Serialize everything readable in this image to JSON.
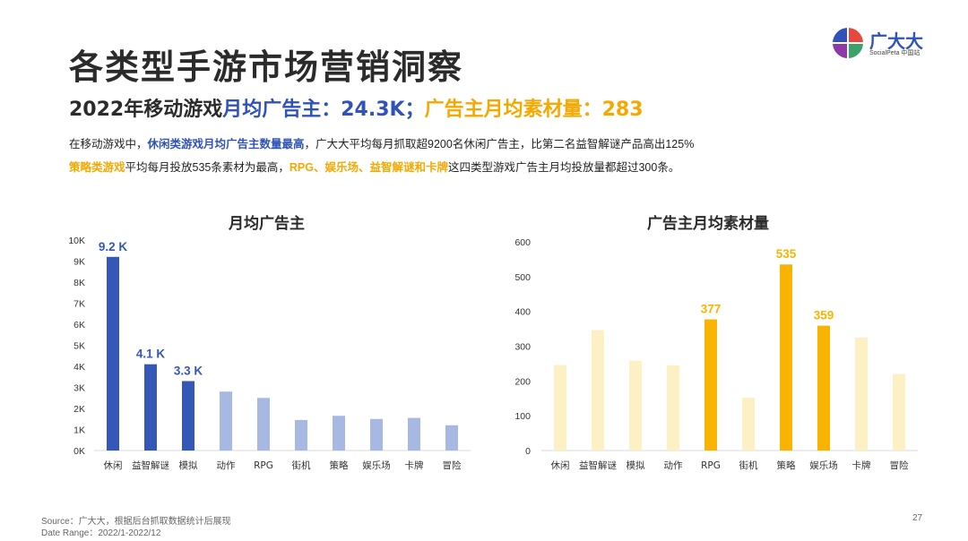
{
  "page": {
    "title": "各类型手游市场营销洞察",
    "page_number": "27"
  },
  "logo": {
    "name": "广大大",
    "sub": "SocialPeta 中国站",
    "colors": [
      "#2f53b8",
      "#e8473f",
      "#8d3aa8",
      "#3aa36b"
    ]
  },
  "headline": {
    "prefix": "2022年移动游戏",
    "blue_part": "月均广告主：24.3K；",
    "orange_part": "广告主月均素材量：283"
  },
  "description": {
    "line1_pre": "在移动游戏中，",
    "line1_bold": "休闲类游戏月均广告主数量最高",
    "line1_post": "，广大大平均每月抓取超9200名休闲广告主，比第二名益智解谜产品高出125%",
    "line2_bold1": "策略类游戏",
    "line2_mid": "平均每月投放535条素材为最高，",
    "line2_bold2": "RPG、娱乐场、益智解谜和卡牌",
    "line2_post": "这四类型游戏广告主月均投放量都超过300条。"
  },
  "footer": {
    "source": "Source：广大大，根据后台抓取数据统计后展现",
    "date_range": "Date Range：2022/1-2022/12"
  },
  "colors": {
    "blue_dark": "#3558b8",
    "blue_light": "#a7b8e2",
    "orange_dark": "#f8b400",
    "orange_light": "#fdf0c4",
    "axis_text": "#333333"
  },
  "chart_data": [
    {
      "type": "bar",
      "title": "月均广告主",
      "categories": [
        "休闲",
        "益智解谜",
        "模拟",
        "动作",
        "RPG",
        "街机",
        "策略",
        "娱乐场",
        "卡牌",
        "冒险"
      ],
      "values": [
        9200,
        4100,
        3300,
        2800,
        2500,
        1450,
        1650,
        1500,
        1550,
        1200
      ],
      "highlight": [
        true,
        true,
        true,
        false,
        false,
        false,
        false,
        false,
        false,
        false
      ],
      "data_labels": [
        "9.2 K",
        "4.1 K",
        "3.3 K",
        "",
        "",
        "",
        "",
        "",
        "",
        ""
      ],
      "ylim": [
        0,
        10000
      ],
      "yticks": [
        0,
        1000,
        2000,
        3000,
        4000,
        5000,
        6000,
        7000,
        8000,
        9000,
        10000
      ],
      "ytick_labels": [
        "0K",
        "1K",
        "2K",
        "3K",
        "4K",
        "5K",
        "6K",
        "7K",
        "8K",
        "9K",
        "10K"
      ],
      "grid": false,
      "xlabel": "",
      "ylabel": ""
    },
    {
      "type": "bar",
      "title": "广告主月均素材量",
      "categories": [
        "休闲",
        "益智解谜",
        "模拟",
        "动作",
        "RPG",
        "街机",
        "策略",
        "娱乐场",
        "卡牌",
        "冒险"
      ],
      "values": [
        246,
        346,
        258,
        245,
        377,
        152,
        535,
        359,
        325,
        220
      ],
      "highlight": [
        false,
        false,
        false,
        false,
        true,
        false,
        true,
        true,
        false,
        false
      ],
      "data_labels": [
        "",
        "",
        "",
        "",
        "377",
        "",
        "535",
        "359",
        "",
        ""
      ],
      "ylim": [
        0,
        600
      ],
      "yticks": [
        0,
        100,
        200,
        300,
        400,
        500,
        600
      ],
      "ytick_labels": [
        "0",
        "100",
        "200",
        "300",
        "400",
        "500",
        "600"
      ],
      "grid": false,
      "xlabel": "",
      "ylabel": ""
    }
  ]
}
